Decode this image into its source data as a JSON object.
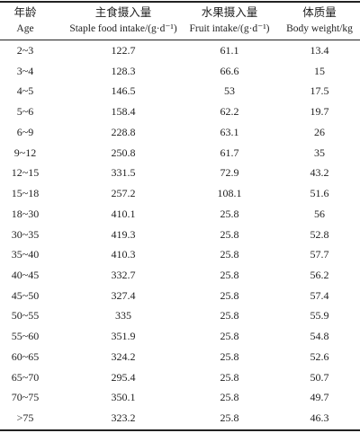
{
  "table": {
    "header": [
      {
        "zh": "年龄",
        "en": "Age"
      },
      {
        "zh": "主食摄入量",
        "en": "Staple food intake/(g·d⁻¹)"
      },
      {
        "zh": "水果摄入量",
        "en": "Fruit intake/(g·d⁻¹)"
      },
      {
        "zh": "体质量",
        "en": "Body weight/kg"
      }
    ],
    "rows": [
      [
        "2~3",
        "122.7",
        "61.1",
        "13.4"
      ],
      [
        "3~4",
        "128.3",
        "66.6",
        "15"
      ],
      [
        "4~5",
        "146.5",
        "53",
        "17.5"
      ],
      [
        "5~6",
        "158.4",
        "62.2",
        "19.7"
      ],
      [
        "6~9",
        "228.8",
        "63.1",
        "26"
      ],
      [
        "9~12",
        "250.8",
        "61.7",
        "35"
      ],
      [
        "12~15",
        "331.5",
        "72.9",
        "43.2"
      ],
      [
        "15~18",
        "257.2",
        "108.1",
        "51.6"
      ],
      [
        "18~30",
        "410.1",
        "25.8",
        "56"
      ],
      [
        "30~35",
        "419.3",
        "25.8",
        "52.8"
      ],
      [
        "35~40",
        "410.3",
        "25.8",
        "57.7"
      ],
      [
        "40~45",
        "332.7",
        "25.8",
        "56.2"
      ],
      [
        "45~50",
        "327.4",
        "25.8",
        "57.4"
      ],
      [
        "50~55",
        "335",
        "25.8",
        "55.9"
      ],
      [
        "55~60",
        "351.9",
        "25.8",
        "54.8"
      ],
      [
        "60~65",
        "324.2",
        "25.8",
        "52.6"
      ],
      [
        "65~70",
        "295.4",
        "25.8",
        "50.7"
      ],
      [
        "70~75",
        "350.1",
        "25.8",
        "49.7"
      ],
      [
        ">75",
        "323.2",
        "25.8",
        "46.3"
      ]
    ]
  }
}
